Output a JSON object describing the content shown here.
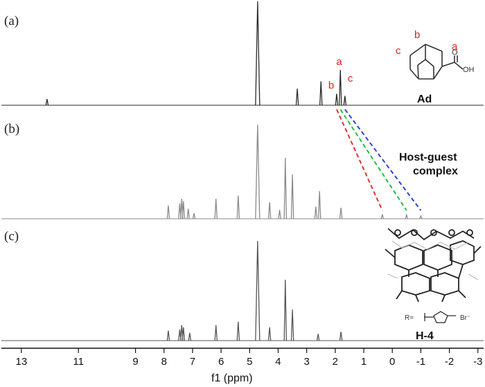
{
  "chart_data": {
    "type": "line",
    "xlabel": "f1 (ppm)",
    "x_reversed": true,
    "xlim": [
      13.7,
      -3.2
    ],
    "x_ticks": [
      "13",
      "11",
      "9",
      "8",
      "7",
      "6",
      "5",
      "4",
      "3",
      "2",
      "1",
      "0",
      "-1",
      "-2",
      "-3"
    ],
    "panels": [
      {
        "label": "(a)",
        "name": "Ad",
        "color": "#2a2a2a",
        "peaks": [
          {
            "ppm": 12.1,
            "height": 0.06
          },
          {
            "ppm": 4.72,
            "height": 1.0
          },
          {
            "ppm": 3.33,
            "height": 0.16
          },
          {
            "ppm": 2.5,
            "height": 0.23
          },
          {
            "ppm": 1.95,
            "height": 0.11
          },
          {
            "ppm": 1.82,
            "height": 0.34
          },
          {
            "ppm": 1.66,
            "height": 0.09
          }
        ],
        "peak_labels": [
          {
            "text": "a",
            "ppm": 1.82
          },
          {
            "text": "b",
            "ppm": 1.95
          },
          {
            "text": "c",
            "ppm": 1.66
          }
        ]
      },
      {
        "label": "(b)",
        "name": "Host-guest complex",
        "color": "#8a8a8a",
        "peaks": [
          {
            "ppm": 7.85,
            "height": 0.12
          },
          {
            "ppm": 7.45,
            "height": 0.14
          },
          {
            "ppm": 7.38,
            "height": 0.18
          },
          {
            "ppm": 7.32,
            "height": 0.16
          },
          {
            "ppm": 7.15,
            "height": 0.09
          },
          {
            "ppm": 6.95,
            "height": 0.05
          },
          {
            "ppm": 6.18,
            "height": 0.18
          },
          {
            "ppm": 5.4,
            "height": 0.21
          },
          {
            "ppm": 4.72,
            "height": 0.85
          },
          {
            "ppm": 4.3,
            "height": 0.15
          },
          {
            "ppm": 3.95,
            "height": 0.08
          },
          {
            "ppm": 3.75,
            "height": 0.55
          },
          {
            "ppm": 3.5,
            "height": 0.4
          },
          {
            "ppm": 2.68,
            "height": 0.11
          },
          {
            "ppm": 2.55,
            "height": 0.25
          },
          {
            "ppm": 1.8,
            "height": 0.1
          },
          {
            "ppm": 0.35,
            "height": 0.04
          },
          {
            "ppm": -0.5,
            "height": 0.035
          },
          {
            "ppm": -1.0,
            "height": 0.025
          }
        ],
        "shift_lines": [
          {
            "from_ppm": 1.95,
            "to_ppm": 0.35,
            "color": "#e53030"
          },
          {
            "from_ppm": 1.82,
            "to_ppm": -0.5,
            "color": "#22c040"
          },
          {
            "from_ppm": 1.66,
            "to_ppm": -1.0,
            "color": "#3040e0"
          }
        ]
      },
      {
        "label": "(c)",
        "name": "H-4",
        "color": "#555555",
        "peaks": [
          {
            "ppm": 7.85,
            "height": 0.09
          },
          {
            "ppm": 7.45,
            "height": 0.1
          },
          {
            "ppm": 7.38,
            "height": 0.14
          },
          {
            "ppm": 7.32,
            "height": 0.12
          },
          {
            "ppm": 7.1,
            "height": 0.07
          },
          {
            "ppm": 6.18,
            "height": 0.14
          },
          {
            "ppm": 5.4,
            "height": 0.17
          },
          {
            "ppm": 4.72,
            "height": 0.9
          },
          {
            "ppm": 4.3,
            "height": 0.12
          },
          {
            "ppm": 3.75,
            "height": 0.55
          },
          {
            "ppm": 3.5,
            "height": 0.28
          },
          {
            "ppm": 2.6,
            "height": 0.06
          },
          {
            "ppm": 1.8,
            "height": 0.08
          }
        ]
      }
    ],
    "annotations": {
      "ad_substituent": "OH",
      "ad_atom_o": "O",
      "h4_r_def": "R=",
      "h4_counterion": "Br⁻"
    }
  }
}
